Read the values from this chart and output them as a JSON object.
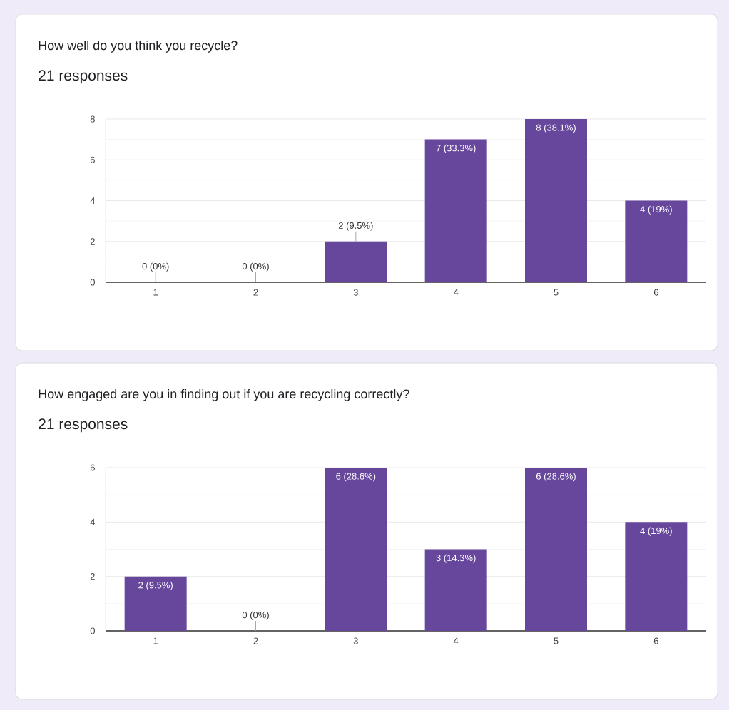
{
  "chart_data": [
    {
      "type": "bar",
      "title": "How well do you think you recycle?",
      "subtitle": "21 responses",
      "categories": [
        "1",
        "2",
        "3",
        "4",
        "5",
        "6"
      ],
      "values": [
        0,
        0,
        2,
        7,
        8,
        4
      ],
      "color": "#66479c",
      "value_labels": [
        "0 (0%)",
        "0 (0%)",
        "2 (9.5%)",
        "7 (33.3%)",
        "8 (38.1%)",
        "4 (19%)"
      ],
      "ylim": [
        0,
        8
      ],
      "yticks": [
        0,
        {
          "value": 1,
          "label": null
        },
        2,
        {
          "value": 3,
          "label": null
        },
        4,
        {
          "value": 5,
          "label": null
        },
        6,
        {
          "value": 7,
          "label": null
        },
        8
      ],
      "grid": "y"
    },
    {
      "type": "bar",
      "title": "How engaged are you in finding out if you are recycling correctly?",
      "subtitle": "21 responses",
      "categories": [
        "1",
        "2",
        "3",
        "4",
        "5",
        "6"
      ],
      "values": [
        2,
        0,
        6,
        3,
        6,
        4
      ],
      "color": "#66479c",
      "value_labels": [
        "2 (9.5%)",
        "0 (0%)",
        "6 (28.6%)",
        "3 (14.3%)",
        "6 (28.6%)",
        "4 (19%)"
      ],
      "ylim": [
        0,
        6
      ],
      "yticks": [
        0,
        {
          "value": 1,
          "label": null
        },
        2,
        {
          "value": 3,
          "label": null
        },
        4,
        {
          "value": 5,
          "label": null
        },
        6
      ],
      "grid": "y"
    }
  ]
}
